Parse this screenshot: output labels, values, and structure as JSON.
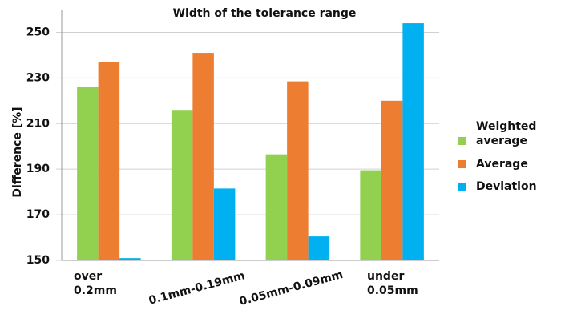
{
  "chart_data": {
    "type": "bar",
    "title": "Width of the tolerance range",
    "y_label": "Difference [%]",
    "categories": [
      "over 0.2mm",
      "0.1mm-0.19mm",
      "0.05mm-0.09mm",
      "under 0.05mm"
    ],
    "series": [
      {
        "name": "Weighted average",
        "color": "#92d050",
        "values": [
          226,
          216,
          196.5,
          189.5
        ]
      },
      {
        "name": "Average",
        "color": "#ed7d31",
        "values": [
          237,
          241,
          228.5,
          220
        ]
      },
      {
        "name": "Deviation",
        "color": "#00b0f0",
        "values": [
          151,
          181.5,
          160.5,
          254
        ]
      }
    ],
    "ylim": [
      150,
      260
    ],
    "yticks": [
      150,
      170,
      190,
      210,
      230,
      250
    ],
    "grid": true,
    "legend": "right"
  }
}
